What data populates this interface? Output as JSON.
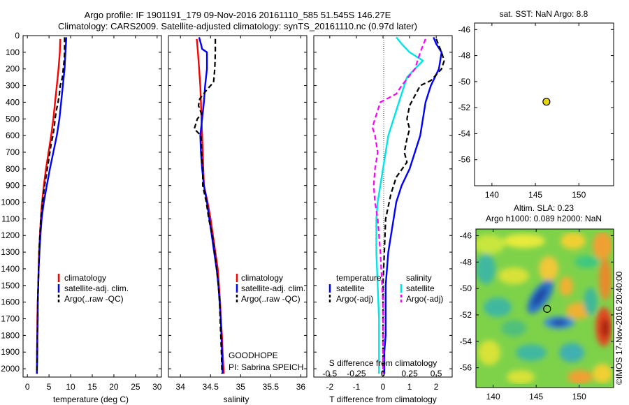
{
  "header": {
    "title_line1": "Argo profile: IF 1901191_179 09-Nov-2016 20161110_585 51.545S 146.27E",
    "title_line2": "Climatology: CARS2009. Satellite-adjusted climatology: synTS_20161110.nc (0.97d later)"
  },
  "depth_ticks": [
    0,
    100,
    200,
    300,
    400,
    500,
    600,
    700,
    800,
    900,
    1000,
    1100,
    1200,
    1300,
    1400,
    1500,
    1600,
    1700,
    1800,
    1900,
    2000
  ],
  "colors": {
    "climatology": "#ff0000",
    "satellite": "#0000ff",
    "argo": "#000000",
    "sat_salinity": "#00e5e5",
    "argo_salinity": "#ff00ff"
  },
  "chart_data": [
    {
      "type": "line",
      "panel": "temperature",
      "xlabel": "temperature (deg C)",
      "xlim": [
        -1,
        31
      ],
      "xticks": [
        0,
        5,
        10,
        15,
        20,
        25,
        30
      ],
      "ylim": [
        2050,
        0
      ],
      "legend": [
        "climatology",
        "satellite-adj. clim.",
        "Argo(..raw -QC)"
      ],
      "series": [
        {
          "name": "climatology",
          "points": [
            [
              7.6,
              20
            ],
            [
              7.5,
              100
            ],
            [
              7.2,
              200
            ],
            [
              6.8,
              300
            ],
            [
              6.4,
              400
            ],
            [
              6.0,
              500
            ],
            [
              5.5,
              600
            ],
            [
              4.9,
              700
            ],
            [
              4.3,
              800
            ],
            [
              3.8,
              900
            ],
            [
              3.4,
              1000
            ],
            [
              3.1,
              1100
            ],
            [
              2.9,
              1200
            ],
            [
              2.7,
              1300
            ],
            [
              2.6,
              1400
            ],
            [
              2.5,
              1500
            ],
            [
              2.4,
              1600
            ],
            [
              2.3,
              1700
            ],
            [
              2.3,
              1800
            ],
            [
              2.2,
              1900
            ],
            [
              2.2,
              2030
            ]
          ]
        },
        {
          "name": "satellite-adj. clim.",
          "points": [
            [
              9.0,
              10
            ],
            [
              8.8,
              100
            ],
            [
              8.6,
              200
            ],
            [
              8.2,
              300
            ],
            [
              7.8,
              400
            ],
            [
              7.4,
              500
            ],
            [
              6.8,
              600
            ],
            [
              6.0,
              700
            ],
            [
              5.2,
              800
            ],
            [
              4.5,
              900
            ],
            [
              3.8,
              1000
            ],
            [
              3.3,
              1100
            ],
            [
              3.0,
              1200
            ],
            [
              2.8,
              1300
            ],
            [
              2.6,
              1400
            ],
            [
              2.5,
              1500
            ],
            [
              2.4,
              1600
            ],
            [
              2.4,
              1700
            ],
            [
              2.3,
              1800
            ],
            [
              2.3,
              1900
            ],
            [
              2.2,
              2030
            ]
          ]
        },
        {
          "name": "Argo(..raw -QC)",
          "points": [
            [
              8.6,
              10
            ],
            [
              8.6,
              100
            ],
            [
              8.5,
              150
            ],
            [
              8.3,
              200
            ],
            [
              8.1,
              250
            ],
            [
              7.6,
              300
            ],
            [
              7.4,
              350
            ],
            [
              7.1,
              400
            ],
            [
              6.7,
              450
            ],
            [
              6.4,
              500
            ],
            [
              6.2,
              550
            ],
            [
              5.9,
              600
            ],
            [
              5.5,
              650
            ],
            [
              5.2,
              700
            ],
            [
              4.6,
              800
            ],
            [
              4.0,
              900
            ],
            [
              3.5,
              1000
            ],
            [
              3.1,
              1100
            ],
            [
              2.9,
              1200
            ],
            [
              2.7,
              1300
            ],
            [
              2.6,
              1400
            ],
            [
              2.5,
              1500
            ],
            [
              2.4,
              1600
            ],
            [
              2.4,
              1700
            ],
            [
              2.3,
              1800
            ],
            [
              2.3,
              1900
            ],
            [
              2.2,
              2030
            ]
          ]
        }
      ]
    },
    {
      "type": "line",
      "panel": "salinity",
      "xlabel": "salinity",
      "xlim": [
        33.8,
        36.1
      ],
      "xticks": [
        34,
        34.5,
        35,
        35.5,
        36
      ],
      "ylim": [
        2050,
        0
      ],
      "legend": [
        "climatology",
        "satellite-adj. clim.",
        "Argo(..raw -QC)"
      ],
      "annotation": [
        "GOODHOPE",
        "PI: Sabrina SPEICH"
      ],
      "series": [
        {
          "name": "climatology",
          "points": [
            [
              34.27,
              20
            ],
            [
              34.29,
              100
            ],
            [
              34.31,
              200
            ],
            [
              34.33,
              300
            ],
            [
              34.34,
              400
            ],
            [
              34.35,
              500
            ],
            [
              34.36,
              600
            ],
            [
              34.37,
              700
            ],
            [
              34.38,
              800
            ],
            [
              34.39,
              900
            ],
            [
              34.45,
              1000
            ],
            [
              34.5,
              1100
            ],
            [
              34.54,
              1200
            ],
            [
              34.58,
              1300
            ],
            [
              34.62,
              1400
            ],
            [
              34.64,
              1500
            ],
            [
              34.66,
              1600
            ],
            [
              34.67,
              1700
            ],
            [
              34.69,
              1800
            ],
            [
              34.7,
              1900
            ],
            [
              34.72,
              2030
            ]
          ]
        },
        {
          "name": "satellite-adj. clim.",
          "points": [
            [
              34.31,
              10
            ],
            [
              34.34,
              50
            ],
            [
              34.36,
              80
            ],
            [
              34.44,
              100
            ],
            [
              34.44,
              200
            ],
            [
              34.41,
              300
            ],
            [
              34.39,
              400
            ],
            [
              34.36,
              500
            ],
            [
              34.33,
              600
            ],
            [
              34.34,
              700
            ],
            [
              34.36,
              800
            ],
            [
              34.39,
              900
            ],
            [
              34.44,
              1000
            ],
            [
              34.48,
              1100
            ],
            [
              34.52,
              1200
            ],
            [
              34.56,
              1300
            ],
            [
              34.6,
              1400
            ],
            [
              34.63,
              1500
            ],
            [
              34.65,
              1600
            ],
            [
              34.67,
              1700
            ],
            [
              34.68,
              1800
            ],
            [
              34.69,
              1900
            ],
            [
              34.7,
              2030
            ]
          ]
        },
        {
          "name": "Argo(..raw -QC)",
          "points": [
            [
              34.58,
              20
            ],
            [
              34.58,
              100
            ],
            [
              34.57,
              200
            ],
            [
              34.55,
              280
            ],
            [
              34.45,
              320
            ],
            [
              34.32,
              380
            ],
            [
              34.3,
              420
            ],
            [
              34.35,
              470
            ],
            [
              34.28,
              500
            ],
            [
              34.23,
              560
            ],
            [
              34.34,
              600
            ],
            [
              34.35,
              700
            ],
            [
              34.37,
              800
            ],
            [
              34.37,
              900
            ],
            [
              34.43,
              1000
            ],
            [
              34.47,
              1100
            ],
            [
              34.53,
              1200
            ],
            [
              34.57,
              1300
            ],
            [
              34.6,
              1400
            ],
            [
              34.63,
              1500
            ],
            [
              34.65,
              1600
            ],
            [
              34.66,
              1700
            ],
            [
              34.67,
              1800
            ],
            [
              34.68,
              1900
            ],
            [
              34.69,
              2030
            ]
          ]
        }
      ]
    },
    {
      "type": "line",
      "panel": "difference",
      "xlabel": "T difference from climatology",
      "xlim": [
        -2.6,
        2.6
      ],
      "xticks": [
        -2,
        -1,
        0,
        1,
        2
      ],
      "top_xlabel": "S difference from climatology",
      "top_xticks": [
        "-0.5",
        "-0.25",
        "0",
        "0.25",
        "0.5"
      ],
      "top_xtick_positions": [
        -2,
        -1,
        0,
        1,
        2
      ],
      "ylim": [
        2050,
        0
      ],
      "legend": [
        "temperature",
        "satellite",
        "Argo(-adj)",
        "salinity",
        "satellite",
        "Argo(-adj)"
      ],
      "series": [
        {
          "name": "temperature satellite",
          "points": [
            [
              1.9,
              10
            ],
            [
              2.0,
              50
            ],
            [
              2.2,
              100
            ],
            [
              2.1,
              200
            ],
            [
              1.8,
              300
            ],
            [
              1.6,
              400
            ],
            [
              1.5,
              500
            ],
            [
              1.4,
              600
            ],
            [
              1.2,
              700
            ],
            [
              1.0,
              800
            ],
            [
              0.7,
              900
            ],
            [
              0.5,
              1000
            ],
            [
              0.4,
              1100
            ],
            [
              0.3,
              1200
            ],
            [
              0.2,
              1300
            ],
            [
              0.15,
              1400
            ],
            [
              0.1,
              1500
            ],
            [
              0.1,
              1600
            ],
            [
              0.1,
              1700
            ],
            [
              0.1,
              1800
            ],
            [
              0.05,
              1900
            ],
            [
              0.05,
              2030
            ]
          ]
        },
        {
          "name": "temperature Argo(-adj)",
          "points": [
            [
              2.0,
              20
            ],
            [
              2.2,
              100
            ],
            [
              2.3,
              150
            ],
            [
              2.2,
              200
            ],
            [
              1.8,
              270
            ],
            [
              1.4,
              300
            ],
            [
              1.2,
              360
            ],
            [
              1.0,
              420
            ],
            [
              0.9,
              500
            ],
            [
              1.0,
              560
            ],
            [
              0.9,
              620
            ],
            [
              0.8,
              700
            ],
            [
              0.9,
              760
            ],
            [
              0.5,
              850
            ],
            [
              0.3,
              950
            ],
            [
              0.1,
              1100
            ],
            [
              0.05,
              1300
            ],
            [
              0.0,
              1500
            ],
            [
              0.0,
              1700
            ],
            [
              0.0,
              1900
            ],
            [
              0.0,
              2030
            ]
          ]
        },
        {
          "name": "salinity satellite",
          "points": [
            [
              0.5,
              10
            ],
            [
              0.7,
              50
            ],
            [
              1.0,
              100
            ],
            [
              1.5,
              150
            ],
            [
              0.9,
              250
            ],
            [
              0.6,
              400
            ],
            [
              0.4,
              500
            ],
            [
              0.2,
              600
            ],
            [
              0.1,
              700
            ],
            [
              0.0,
              800
            ],
            [
              -0.1,
              900
            ],
            [
              -0.2,
              1000
            ],
            [
              -0.25,
              1100
            ],
            [
              -0.25,
              1300
            ],
            [
              -0.2,
              1500
            ],
            [
              -0.15,
              1700
            ],
            [
              -0.15,
              1900
            ],
            [
              -0.15,
              2030
            ]
          ]
        },
        {
          "name": "salinity Argo(-adj)",
          "points": [
            [
              1.6,
              20
            ],
            [
              1.4,
              100
            ],
            [
              1.2,
              200
            ],
            [
              0.7,
              300
            ],
            [
              0.5,
              350
            ],
            [
              -0.1,
              400
            ],
            [
              -0.2,
              450
            ],
            [
              -0.3,
              500
            ],
            [
              -0.4,
              550
            ],
            [
              -0.3,
              600
            ],
            [
              -0.2,
              700
            ],
            [
              -0.3,
              800
            ],
            [
              -0.35,
              900
            ],
            [
              -0.3,
              1000
            ],
            [
              -0.2,
              1100
            ],
            [
              -0.1,
              1300
            ],
            [
              0.0,
              1600
            ],
            [
              0.0,
              1900
            ],
            [
              0.0,
              2030
            ]
          ]
        }
      ]
    },
    {
      "type": "scatter",
      "panel": "sst-map",
      "title": "sat. SST: NaN Argo: 8.8",
      "xlim": [
        138,
        154
      ],
      "ylim": [
        -58,
        -45.5
      ],
      "xticks": [
        140,
        145,
        150
      ],
      "yticks": [
        -46,
        -48,
        -50,
        -52,
        -54,
        -56
      ],
      "points": [
        [
          146.27,
          -51.545
        ]
      ]
    },
    {
      "type": "heatmap",
      "panel": "sla-map",
      "title": [
        "Altim. SLA: 0.23",
        "Argo h1000: 0.089 h2000: NaN"
      ],
      "xlim": [
        138,
        154
      ],
      "ylim": [
        -57.5,
        -45.5
      ],
      "xticks": [
        140,
        145,
        150
      ],
      "yticks": [
        -46,
        -48,
        -50,
        -52,
        -54,
        -56
      ],
      "points": [
        [
          146.27,
          -51.545
        ]
      ]
    }
  ],
  "footer": {
    "credit": "©IMOS 17-Nov-2016 20:40:00"
  }
}
